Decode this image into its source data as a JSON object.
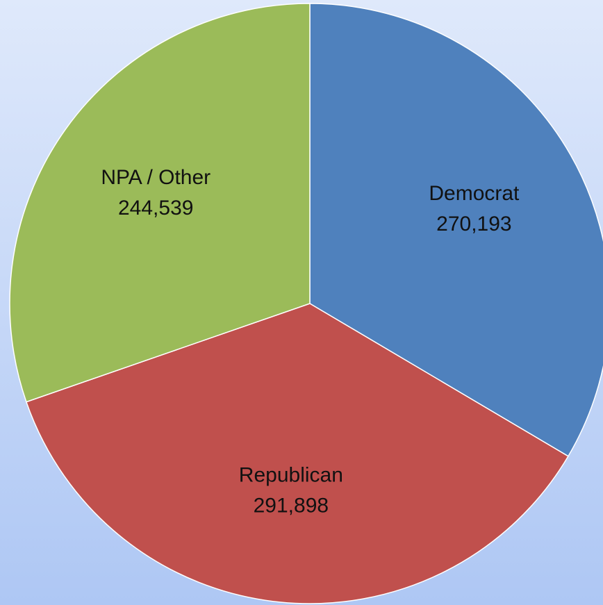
{
  "chart_data": {
    "type": "pie",
    "categories": [
      "Democrat",
      "Republican",
      "NPA / Other"
    ],
    "values": [
      270193,
      291898,
      244539
    ],
    "value_labels": [
      "270,193",
      "291,898",
      "244,539"
    ],
    "colors": [
      "#4f81bd",
      "#c0504d",
      "#9bbb59"
    ]
  }
}
